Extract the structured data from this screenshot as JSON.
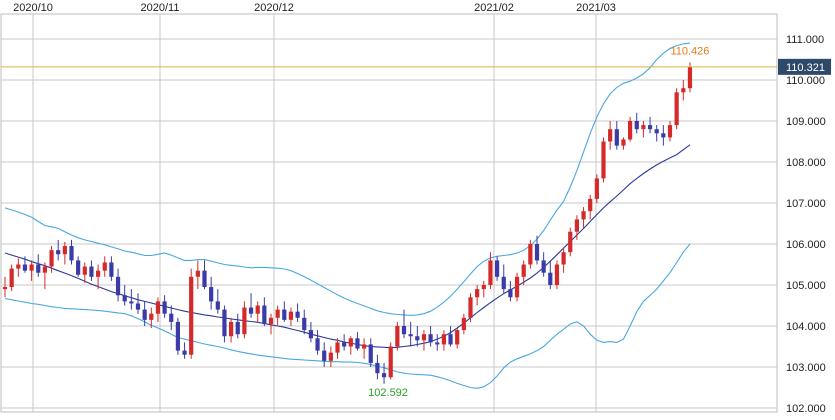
{
  "chart_data": {
    "type": "candlestick",
    "title": "",
    "xlabel": "",
    "ylabel": "",
    "ylim": [
      101.9,
      111.4
    ],
    "y_ticks": [
      "102.000",
      "103.000",
      "104.000",
      "105.000",
      "106.000",
      "107.000",
      "108.000",
      "109.000",
      "110.000",
      "111.000"
    ],
    "x_ticks": [
      "2020/10",
      "2020/11",
      "2020/12",
      "2021/02",
      "2021/03"
    ],
    "grid": true,
    "colors": {
      "up": "#d42a2a",
      "down": "#3a3aa8",
      "band": "#4aa8e0",
      "mid": "#2a3a9a",
      "price_line": "#e0b040",
      "current_box": "#2e4a6a",
      "high_label": "#e07a1a",
      "low_label": "#28a028",
      "grid": "#c8c8c8"
    },
    "current_price": "110.321",
    "high_label": "110.426",
    "low_label": "102.592",
    "candles": [
      [
        104.9,
        105.2,
        104.7,
        104.95
      ],
      [
        104.95,
        105.5,
        104.85,
        105.4
      ],
      [
        105.4,
        105.65,
        105.2,
        105.5
      ],
      [
        105.5,
        105.7,
        105.3,
        105.35
      ],
      [
        105.35,
        105.6,
        105.1,
        105.5
      ],
      [
        105.5,
        105.75,
        105.2,
        105.3
      ],
      [
        105.3,
        105.55,
        104.9,
        105.45
      ],
      [
        105.45,
        105.95,
        105.3,
        105.85
      ],
      [
        105.85,
        106.1,
        105.6,
        105.75
      ],
      [
        105.75,
        106.05,
        105.5,
        105.95
      ],
      [
        105.95,
        106.1,
        105.5,
        105.6
      ],
      [
        105.6,
        105.7,
        105.2,
        105.25
      ],
      [
        105.25,
        105.55,
        105.05,
        105.45
      ],
      [
        105.45,
        105.6,
        105.1,
        105.2
      ],
      [
        105.2,
        105.5,
        104.9,
        105.35
      ],
      [
        105.35,
        105.7,
        105.2,
        105.55
      ],
      [
        105.55,
        105.7,
        105.1,
        105.2
      ],
      [
        105.2,
        105.4,
        104.6,
        104.75
      ],
      [
        104.75,
        105.0,
        104.5,
        104.6
      ],
      [
        104.6,
        104.9,
        104.4,
        104.55
      ],
      [
        104.55,
        104.8,
        104.3,
        104.4
      ],
      [
        104.4,
        104.6,
        104.0,
        104.15
      ],
      [
        104.15,
        104.45,
        103.95,
        104.3
      ],
      [
        104.3,
        104.7,
        104.1,
        104.6
      ],
      [
        104.6,
        104.75,
        104.2,
        104.3
      ],
      [
        104.3,
        104.5,
        103.9,
        104.1
      ],
      [
        104.1,
        104.2,
        103.3,
        103.4
      ],
      [
        103.4,
        103.6,
        103.2,
        103.3
      ],
      [
        103.3,
        105.4,
        103.2,
        105.2
      ],
      [
        105.2,
        105.6,
        104.9,
        105.35
      ],
      [
        105.35,
        105.6,
        104.9,
        104.95
      ],
      [
        104.95,
        105.2,
        104.4,
        104.6
      ],
      [
        104.6,
        104.9,
        104.3,
        104.4
      ],
      [
        104.4,
        104.5,
        103.6,
        103.75
      ],
      [
        103.75,
        104.2,
        103.6,
        104.1
      ],
      [
        104.1,
        104.3,
        103.7,
        103.8
      ],
      [
        103.8,
        104.6,
        103.7,
        104.45
      ],
      [
        104.45,
        104.8,
        104.2,
        104.3
      ],
      [
        104.3,
        104.6,
        104.1,
        104.5
      ],
      [
        104.5,
        104.7,
        104.0,
        104.05
      ],
      [
        104.05,
        104.3,
        103.8,
        104.2
      ],
      [
        104.2,
        104.5,
        104.0,
        104.4
      ],
      [
        104.4,
        104.6,
        104.1,
        104.15
      ],
      [
        104.15,
        104.45,
        104.0,
        104.35
      ],
      [
        104.35,
        104.55,
        104.1,
        104.2
      ],
      [
        104.2,
        104.4,
        103.8,
        103.9
      ],
      [
        103.9,
        104.1,
        103.6,
        103.7
      ],
      [
        103.7,
        103.9,
        103.3,
        103.4
      ],
      [
        103.4,
        103.6,
        103.0,
        103.15
      ],
      [
        103.15,
        103.5,
        103.0,
        103.35
      ],
      [
        103.35,
        103.7,
        103.2,
        103.6
      ],
      [
        103.6,
        103.8,
        103.4,
        103.5
      ],
      [
        103.5,
        103.75,
        103.3,
        103.7
      ],
      [
        103.7,
        103.85,
        103.4,
        103.45
      ],
      [
        103.45,
        103.7,
        103.2,
        103.55
      ],
      [
        103.55,
        103.7,
        103.0,
        103.1
      ],
      [
        103.1,
        103.3,
        102.7,
        102.85
      ],
      [
        102.85,
        103.1,
        102.59,
        102.75
      ],
      [
        102.75,
        103.6,
        102.7,
        103.5
      ],
      [
        103.5,
        104.1,
        103.4,
        104.0
      ],
      [
        104.0,
        104.4,
        103.7,
        103.8
      ],
      [
        103.8,
        104.1,
        103.5,
        103.75
      ],
      [
        103.75,
        104.0,
        103.5,
        103.65
      ],
      [
        103.65,
        103.9,
        103.4,
        103.8
      ],
      [
        103.8,
        104.0,
        103.5,
        103.6
      ],
      [
        103.6,
        103.8,
        103.4,
        103.55
      ],
      [
        103.55,
        103.9,
        103.4,
        103.8
      ],
      [
        103.8,
        104.0,
        103.5,
        103.55
      ],
      [
        103.55,
        103.95,
        103.45,
        103.9
      ],
      [
        103.9,
        104.3,
        103.8,
        104.2
      ],
      [
        104.2,
        104.8,
        104.1,
        104.7
      ],
      [
        104.7,
        105.0,
        104.5,
        104.9
      ],
      [
        104.9,
        105.1,
        104.7,
        105.0
      ],
      [
        105.0,
        105.8,
        104.9,
        105.6
      ],
      [
        105.6,
        105.7,
        105.1,
        105.2
      ],
      [
        105.2,
        105.5,
        104.8,
        104.9
      ],
      [
        104.9,
        105.1,
        104.6,
        104.7
      ],
      [
        104.7,
        105.3,
        104.6,
        105.2
      ],
      [
        105.2,
        105.6,
        105.0,
        105.5
      ],
      [
        105.5,
        106.1,
        105.4,
        106.0
      ],
      [
        106.0,
        106.2,
        105.5,
        105.6
      ],
      [
        105.6,
        105.8,
        105.2,
        105.3
      ],
      [
        105.3,
        105.6,
        104.9,
        105.0
      ],
      [
        105.0,
        105.6,
        104.9,
        105.5
      ],
      [
        105.5,
        105.9,
        105.3,
        105.8
      ],
      [
        105.8,
        106.4,
        105.7,
        106.3
      ],
      [
        106.3,
        106.7,
        106.1,
        106.6
      ],
      [
        106.6,
        106.9,
        106.4,
        106.8
      ],
      [
        106.8,
        107.2,
        106.6,
        107.1
      ],
      [
        107.1,
        107.7,
        107.0,
        107.6
      ],
      [
        107.6,
        108.6,
        107.5,
        108.5
      ],
      [
        108.5,
        109.0,
        108.3,
        108.8
      ],
      [
        108.8,
        109.0,
        108.3,
        108.4
      ],
      [
        108.4,
        108.6,
        108.3,
        108.55
      ],
      [
        108.55,
        109.1,
        108.5,
        109.0
      ],
      [
        109.0,
        109.2,
        108.7,
        108.8
      ],
      [
        108.8,
        109.0,
        108.6,
        108.9
      ],
      [
        108.9,
        109.1,
        108.7,
        108.8
      ],
      [
        108.8,
        108.9,
        108.5,
        108.7
      ],
      [
        108.7,
        108.9,
        108.4,
        108.6
      ],
      [
        108.6,
        109.0,
        108.5,
        108.9
      ],
      [
        108.9,
        109.8,
        108.8,
        109.7
      ],
      [
        109.7,
        110.0,
        109.5,
        109.8
      ],
      [
        109.8,
        110.43,
        109.7,
        110.32
      ]
    ],
    "upper_band": [
      106.88,
      106.83,
      106.78,
      106.72,
      106.65,
      106.55,
      106.45,
      106.42,
      106.38,
      106.3,
      106.22,
      106.15,
      106.1,
      106.06,
      106.02,
      105.98,
      105.93,
      105.88,
      105.83,
      105.8,
      105.76,
      105.72,
      105.72,
      105.75,
      105.78,
      105.73,
      105.66,
      105.6,
      105.6,
      105.62,
      105.62,
      105.58,
      105.54,
      105.5,
      105.48,
      105.46,
      105.44,
      105.42,
      105.43,
      105.43,
      105.42,
      105.41,
      105.39,
      105.35,
      105.28,
      105.2,
      105.12,
      105.03,
      104.94,
      104.85,
      104.76,
      104.68,
      104.61,
      104.55,
      104.49,
      104.43,
      104.37,
      104.33,
      104.3,
      104.28,
      104.27,
      104.26,
      104.27,
      104.3,
      104.36,
      104.46,
      104.58,
      104.73,
      104.9,
      105.08,
      105.27,
      105.45,
      105.58,
      105.66,
      105.7,
      105.72,
      105.74,
      105.78,
      105.85,
      105.96,
      106.12,
      106.33,
      106.58,
      106.83,
      107.04,
      107.39,
      107.79,
      108.25,
      108.7,
      109.1,
      109.42,
      109.66,
      109.82,
      109.92,
      109.97,
      110.05,
      110.15,
      110.3,
      110.5,
      110.65,
      110.77,
      110.84,
      110.88,
      110.9
    ],
    "middle_band": [
      105.78,
      105.73,
      105.68,
      105.63,
      105.57,
      105.52,
      105.47,
      105.41,
      105.35,
      105.29,
      105.23,
      105.16,
      105.09,
      105.02,
      104.96,
      104.9,
      104.84,
      104.79,
      104.74,
      104.69,
      104.64,
      104.6,
      104.56,
      104.52,
      104.48,
      104.44,
      104.4,
      104.36,
      104.33,
      104.3,
      104.27,
      104.25,
      104.22,
      104.2,
      104.17,
      104.15,
      104.13,
      104.11,
      104.09,
      104.06,
      104.03,
      104.0,
      103.97,
      103.93,
      103.89,
      103.85,
      103.8,
      103.76,
      103.72,
      103.68,
      103.65,
      103.61,
      103.58,
      103.55,
      103.52,
      103.5,
      103.49,
      103.48,
      103.47,
      103.48,
      103.5,
      103.52,
      103.55,
      103.58,
      103.62,
      103.68,
      103.75,
      103.84,
      103.95,
      104.07,
      104.2,
      104.33,
      104.45,
      104.57,
      104.68,
      104.79,
      104.88,
      104.97,
      105.07,
      105.17,
      105.29,
      105.43,
      105.58,
      105.74,
      105.9,
      106.06,
      106.22,
      106.38,
      106.55,
      106.72,
      106.88,
      107.03,
      107.17,
      107.32,
      107.47,
      107.6,
      107.72,
      107.83,
      107.93,
      108.02,
      108.1,
      108.18,
      108.3,
      108.42
    ],
    "lower_band": [
      104.67,
      104.64,
      104.61,
      104.58,
      104.55,
      104.53,
      104.5,
      104.47,
      104.45,
      104.43,
      104.42,
      104.41,
      104.4,
      104.39,
      104.38,
      104.36,
      104.34,
      104.32,
      104.3,
      104.25,
      104.18,
      104.1,
      104.02,
      103.95,
      103.88,
      103.8,
      103.72,
      103.68,
      103.64,
      103.6,
      103.56,
      103.53,
      103.5,
      103.46,
      103.42,
      103.38,
      103.35,
      103.32,
      103.29,
      103.27,
      103.25,
      103.23,
      103.21,
      103.19,
      103.18,
      103.17,
      103.16,
      103.15,
      103.14,
      103.13,
      103.13,
      103.12,
      103.12,
      103.11,
      103.09,
      103.06,
      103.02,
      102.98,
      102.93,
      102.88,
      102.85,
      102.83,
      102.82,
      102.81,
      102.8,
      102.76,
      102.72,
      102.66,
      102.6,
      102.55,
      102.5,
      102.48,
      102.52,
      102.62,
      102.78,
      102.98,
      103.12,
      103.2,
      103.26,
      103.32,
      103.4,
      103.5,
      103.65,
      103.8,
      103.92,
      104.05,
      104.1,
      104.0,
      103.8,
      103.65,
      103.6,
      103.62,
      103.6,
      103.68,
      104.0,
      104.35,
      104.6,
      104.75,
      104.9,
      105.1,
      105.3,
      105.55,
      105.8,
      106.0
    ]
  }
}
